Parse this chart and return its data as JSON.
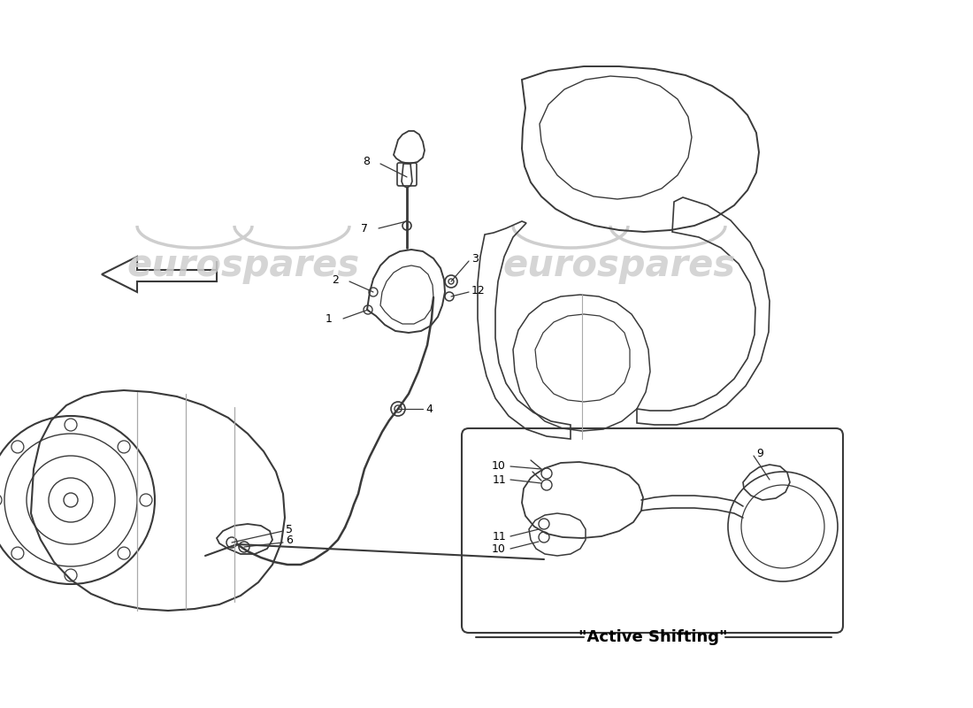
{
  "bg_color": "#ffffff",
  "lc": "#3a3a3a",
  "llc": "#aaaaaa",
  "wm_color": "#cecece",
  "active_shifting": "\"Active Shifting\"",
  "fig_w": 11.0,
  "fig_h": 8.0,
  "dpi": 100
}
